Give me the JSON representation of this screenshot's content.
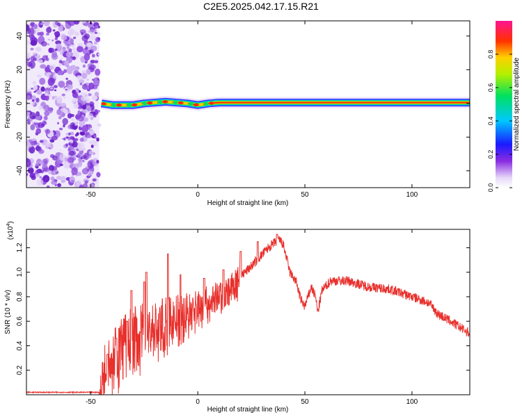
{
  "title": "C2E5.2025.042.17.15.R21",
  "chart_data": [
    {
      "type": "heatmap",
      "xlabel": "Height of straight line (km)",
      "ylabel": "Frequency (Hz)",
      "xlim": [
        -80,
        127
      ],
      "ylim": [
        -50,
        49
      ],
      "xticks": [
        -50,
        0,
        50,
        100
      ],
      "yticks": [
        -40,
        -20,
        0,
        20,
        40
      ],
      "noise_region_x": [
        -80,
        -46
      ],
      "carrier_freq_hz": [
        {
          "x": -45,
          "f": 0
        },
        {
          "x": -40,
          "f": -1
        },
        {
          "x": -30,
          "f": -1
        },
        {
          "x": -25,
          "f": 0
        },
        {
          "x": -20,
          "f": 0.5
        },
        {
          "x": -15,
          "f": 1
        },
        {
          "x": -10,
          "f": 0.5
        },
        {
          "x": -5,
          "f": 0
        },
        {
          "x": 0,
          "f": -1
        },
        {
          "x": 5,
          "f": 0
        },
        {
          "x": 10,
          "f": 0.5
        },
        {
          "x": 127,
          "f": 0.5
        }
      ],
      "colorbar": {
        "label": "Normalized spectral amplitude",
        "range": [
          0,
          1
        ],
        "ticks": [
          "0.0",
          "0.2",
          "0.4",
          "0.6",
          "0.8"
        ]
      }
    },
    {
      "type": "line",
      "xlabel": "Height of straight line (km)",
      "ylabel": "SNR (10 * v/v)",
      "scale_label": "(x10",
      "scale_exp": "4",
      "scale_close": ")",
      "xlim": [
        -80,
        127
      ],
      "ylim": [
        0,
        1.35
      ],
      "xticks": [
        -50,
        0,
        50,
        100
      ],
      "yticks": [
        "0.2",
        "0.4",
        "0.6",
        "0.8",
        "1.0",
        "1.2"
      ],
      "color": "#e8302c",
      "envelope": [
        {
          "x": -80,
          "y": 0.02
        },
        {
          "x": -46,
          "y": 0.02
        },
        {
          "x": -43,
          "y": 0.3
        },
        {
          "x": -35,
          "y": 0.45
        },
        {
          "x": -25,
          "y": 0.55
        },
        {
          "x": -15,
          "y": 0.62
        },
        {
          "x": -5,
          "y": 0.7
        },
        {
          "x": 5,
          "y": 0.78
        },
        {
          "x": 15,
          "y": 0.88
        },
        {
          "x": 25,
          "y": 1.05
        },
        {
          "x": 33,
          "y": 1.2
        },
        {
          "x": 38,
          "y": 1.27
        },
        {
          "x": 40,
          "y": 1.22
        },
        {
          "x": 43,
          "y": 1.0
        },
        {
          "x": 46,
          "y": 0.92
        },
        {
          "x": 48,
          "y": 0.78
        },
        {
          "x": 50,
          "y": 0.72
        },
        {
          "x": 53,
          "y": 0.88
        },
        {
          "x": 55,
          "y": 0.8
        },
        {
          "x": 56,
          "y": 0.67
        },
        {
          "x": 58,
          "y": 0.85
        },
        {
          "x": 62,
          "y": 0.93
        },
        {
          "x": 70,
          "y": 0.93
        },
        {
          "x": 80,
          "y": 0.88
        },
        {
          "x": 90,
          "y": 0.86
        },
        {
          "x": 100,
          "y": 0.8
        },
        {
          "x": 108,
          "y": 0.75
        },
        {
          "x": 112,
          "y": 0.66
        },
        {
          "x": 118,
          "y": 0.6
        },
        {
          "x": 127,
          "y": 0.5
        }
      ],
      "spikes": [
        {
          "x": -42,
          "y": 0.33
        },
        {
          "x": -38,
          "y": 0.46
        },
        {
          "x": -33,
          "y": 0.6
        },
        {
          "x": -31,
          "y": 0.85
        },
        {
          "x": -25,
          "y": 0.92
        },
        {
          "x": -24,
          "y": 1.0
        },
        {
          "x": -14,
          "y": 1.15
        },
        {
          "x": -8,
          "y": 0.98
        },
        {
          "x": 3,
          "y": 0.95
        },
        {
          "x": 12,
          "y": 1.02
        },
        {
          "x": 20,
          "y": 1.17
        },
        {
          "x": 28,
          "y": 1.25
        },
        {
          "x": 37,
          "y": 1.31
        }
      ]
    }
  ]
}
